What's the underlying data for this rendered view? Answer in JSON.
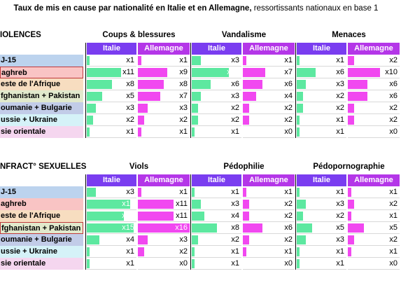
{
  "title_bold": "Taux de mis en cause par nationalité en Italie et en Allemagne,",
  "title_rest": " ressortissants nationaux en base 1",
  "colors": {
    "italie_header": "#7a3df0",
    "allemagne_header": "#b436e8",
    "italie_bar": "#5de8a0",
    "allemagne_bar": "#f148f0"
  },
  "chart_data": {
    "type": "bar",
    "scale_max": 16,
    "sections": [
      {
        "title": "IOLENCES",
        "categories": [
          "J-15",
          "aghreb",
          "este de l'Afrique",
          "fghanistan + Pakistan",
          "oumanie + Bulgarie",
          "ussie + Ukraine",
          "sie orientale"
        ],
        "label_colors": [
          "#bcd3ee",
          "#f9c4c4",
          "#f7ddc0",
          "#e1e9cc",
          "#c2cce8",
          "#d5f2f8",
          "#f5d6ef"
        ],
        "boxed": [
          1
        ],
        "groups": [
          {
            "title": "Coups & blessures",
            "italie_label": "Italie",
            "allemagne_label": "Allemagne",
            "italie": [
              1,
              11,
              8,
              5,
              3,
              2,
              1
            ],
            "allemagne": [
              1,
              9,
              8,
              7,
              3,
              2,
              1
            ]
          },
          {
            "title": "Vandalisme",
            "italie_label": "Italie",
            "allemagne_label": "Allemagne",
            "italie": [
              3,
              12,
              6,
              3,
              2,
              2,
              1
            ],
            "allemagne": [
              1,
              7,
              6,
              4,
              2,
              2,
              0
            ]
          },
          {
            "title": "Menaces",
            "italie_label": "Italie",
            "allemagne_label": "Allemagne",
            "italie": [
              1,
              6,
              3,
              2,
              2,
              1,
              1
            ],
            "allemagne": [
              2,
              10,
              6,
              6,
              2,
              2,
              0
            ]
          }
        ]
      },
      {
        "title": "NFRACT° SEXUELLES",
        "categories": [
          "J-15",
          "aghreb",
          "este de l'Afrique",
          "fghanistan + Pakistan",
          "oumanie + Bulgarie",
          "ussie + Ukraine",
          "sie orientale"
        ],
        "label_colors": [
          "#bcd3ee",
          "#f9c4c4",
          "#f7ddc0",
          "#e1e9cc",
          "#c2cce8",
          "#d5f2f8",
          "#f5d6ef"
        ],
        "boxed": [
          3
        ],
        "groups": [
          {
            "title": "Viols",
            "italie_label": "Italie",
            "allemagne_label": "Allemagne",
            "italie": [
              3,
              14,
              12,
              15,
              4,
              1,
              1
            ],
            "allemagne": [
              1,
              11,
              11,
              16,
              3,
              2,
              0
            ]
          },
          {
            "title": "Pédophilie",
            "italie_label": "Italie",
            "allemagne_label": "Allemagne",
            "italie": [
              1,
              3,
              4,
              8,
              2,
              1,
              1
            ],
            "allemagne": [
              1,
              2,
              2,
              6,
              2,
              1,
              0
            ]
          },
          {
            "title": "Pédopornographie",
            "italie_label": "Italie",
            "allemagne_label": "Allemagne",
            "italie": [
              1,
              3,
              2,
              5,
              3,
              1,
              1
            ],
            "allemagne": [
              1,
              2,
              1,
              5,
              2,
              1,
              0
            ]
          }
        ]
      }
    ]
  }
}
